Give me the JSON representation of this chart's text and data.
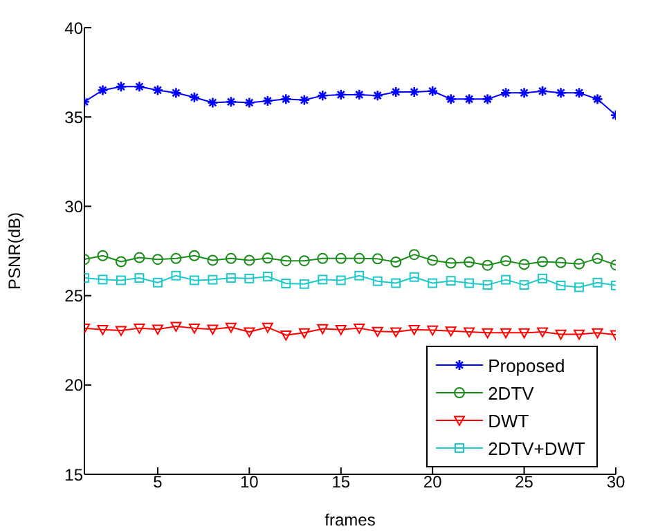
{
  "chart_data": {
    "type": "line",
    "xlabel": "frames",
    "ylabel": "PSNR(dB)",
    "x": [
      1,
      2,
      3,
      4,
      5,
      6,
      7,
      8,
      9,
      10,
      11,
      12,
      13,
      14,
      15,
      16,
      17,
      18,
      19,
      20,
      21,
      22,
      23,
      24,
      25,
      26,
      27,
      28,
      29,
      30
    ],
    "xlim": [
      1,
      30
    ],
    "xticks": [
      5,
      10,
      15,
      20,
      25,
      30
    ],
    "ylim": [
      15,
      40
    ],
    "yticks": [
      15,
      20,
      25,
      30,
      35,
      40
    ],
    "grid": false,
    "legend": "bottom right",
    "series": [
      {
        "name": "Proposed",
        "color": "#0000ff",
        "marker": "cross",
        "values": [
          35.85,
          36.5,
          36.7,
          36.7,
          36.5,
          36.35,
          36.1,
          35.8,
          35.85,
          35.8,
          35.9,
          36.0,
          35.95,
          36.2,
          36.25,
          36.25,
          36.2,
          36.4,
          36.4,
          36.45,
          36.0,
          36.0,
          36.0,
          36.35,
          36.35,
          36.45,
          36.35,
          36.35,
          36.0,
          35.1
        ]
      },
      {
        "name": "2DTV",
        "color": "#1a8c1a",
        "marker": "circle",
        "values": [
          27.03,
          27.24,
          26.9,
          27.13,
          27.03,
          27.08,
          27.24,
          26.98,
          27.08,
          26.98,
          27.1,
          26.95,
          26.95,
          27.08,
          27.08,
          27.08,
          27.06,
          26.88,
          27.3,
          26.98,
          26.82,
          26.88,
          26.7,
          26.95,
          26.75,
          26.9,
          26.85,
          26.77,
          27.08,
          26.72
        ]
      },
      {
        "name": "DWT",
        "color": "#ff0000",
        "marker": "triangle",
        "values": [
          23.18,
          23.1,
          23.05,
          23.18,
          23.12,
          23.28,
          23.18,
          23.12,
          23.23,
          22.97,
          23.23,
          22.79,
          22.92,
          23.15,
          23.1,
          23.18,
          23.0,
          22.97,
          23.1,
          23.07,
          23.02,
          22.97,
          22.92,
          22.92,
          22.92,
          22.97,
          22.84,
          22.84,
          22.92,
          22.81
        ]
      },
      {
        "name": "2DTV+DWT",
        "color": "#1ec8c8",
        "marker": "square",
        "values": [
          25.99,
          25.9,
          25.86,
          25.99,
          25.73,
          26.12,
          25.86,
          25.89,
          25.99,
          25.96,
          26.07,
          25.68,
          25.65,
          25.9,
          25.86,
          26.12,
          25.81,
          25.7,
          26.04,
          25.7,
          25.83,
          25.7,
          25.6,
          25.89,
          25.6,
          25.96,
          25.57,
          25.47,
          25.73,
          25.57
        ]
      }
    ]
  }
}
